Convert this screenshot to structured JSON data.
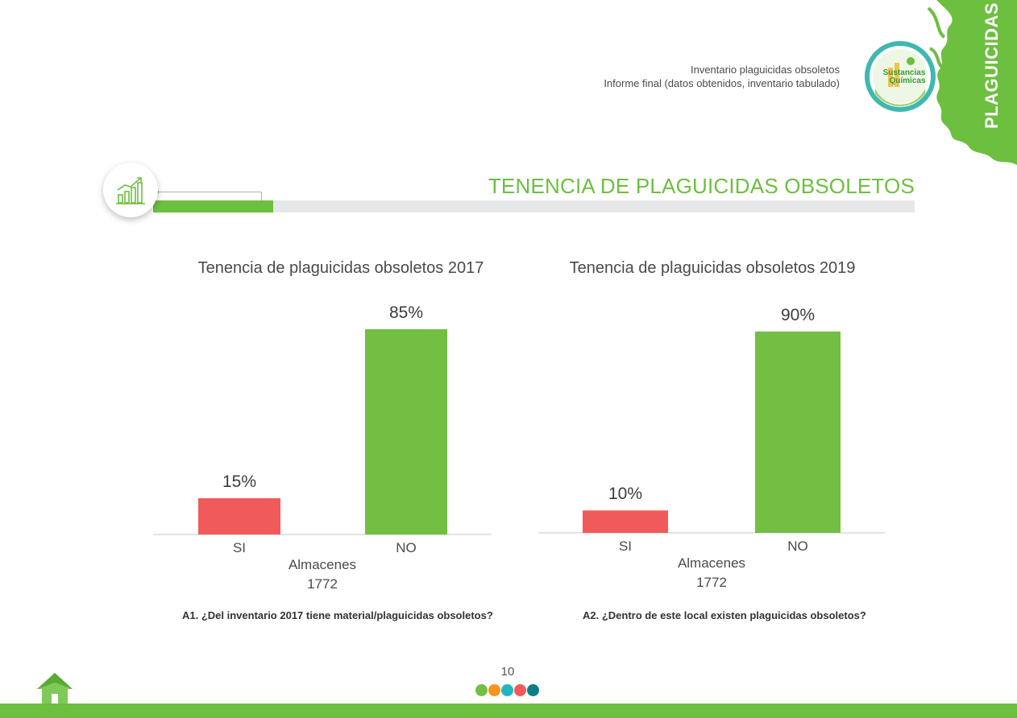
{
  "header": {
    "line1": "Inventario plaguicidas obsoletos",
    "line2": "Informe final (datos obtenidos, inventario tabulado)",
    "side_tab": "PLAGUICIDAS",
    "logo_line1": "Sustancias",
    "logo_line2": "Químicas",
    "brand_color": "#6cbf3f"
  },
  "section": {
    "title": "TENENCIA DE PLAGUICIDAS OBSOLETOS",
    "icon": "growth-chart-icon"
  },
  "chart_data": [
    {
      "type": "bar",
      "title": "Tenencia de plaguicidas obsoletos 2017",
      "categories": [
        "SI",
        "NO"
      ],
      "values": [
        15,
        85
      ],
      "value_labels": [
        "15%",
        "85%"
      ],
      "colors": [
        "#f05a5b",
        "#72bf44"
      ],
      "xlabel": "Almacenes",
      "xlabel_sub": "1772",
      "ylim": [
        0,
        100
      ],
      "question": "A1. ¿Del inventario 2017 tiene material/plaguicidas obsoletos?"
    },
    {
      "type": "bar",
      "title": "Tenencia de plaguicidas obsoletos 2019",
      "categories": [
        "SI",
        "NO"
      ],
      "values": [
        10,
        90
      ],
      "value_labels": [
        "10%",
        "90%"
      ],
      "colors": [
        "#f05a5b",
        "#72bf44"
      ],
      "xlabel": "Almacenes",
      "xlabel_sub": "1772",
      "ylim": [
        0,
        100
      ],
      "question": "A2. ¿Dentro de este local existen plaguicidas obsoletos?"
    }
  ],
  "footer": {
    "page_number": "10",
    "dot_colors": [
      "#72bf44",
      "#f7941d",
      "#1fb5c1",
      "#f05a5b",
      "#0e7c86"
    ],
    "home_icon": "home-icon"
  }
}
